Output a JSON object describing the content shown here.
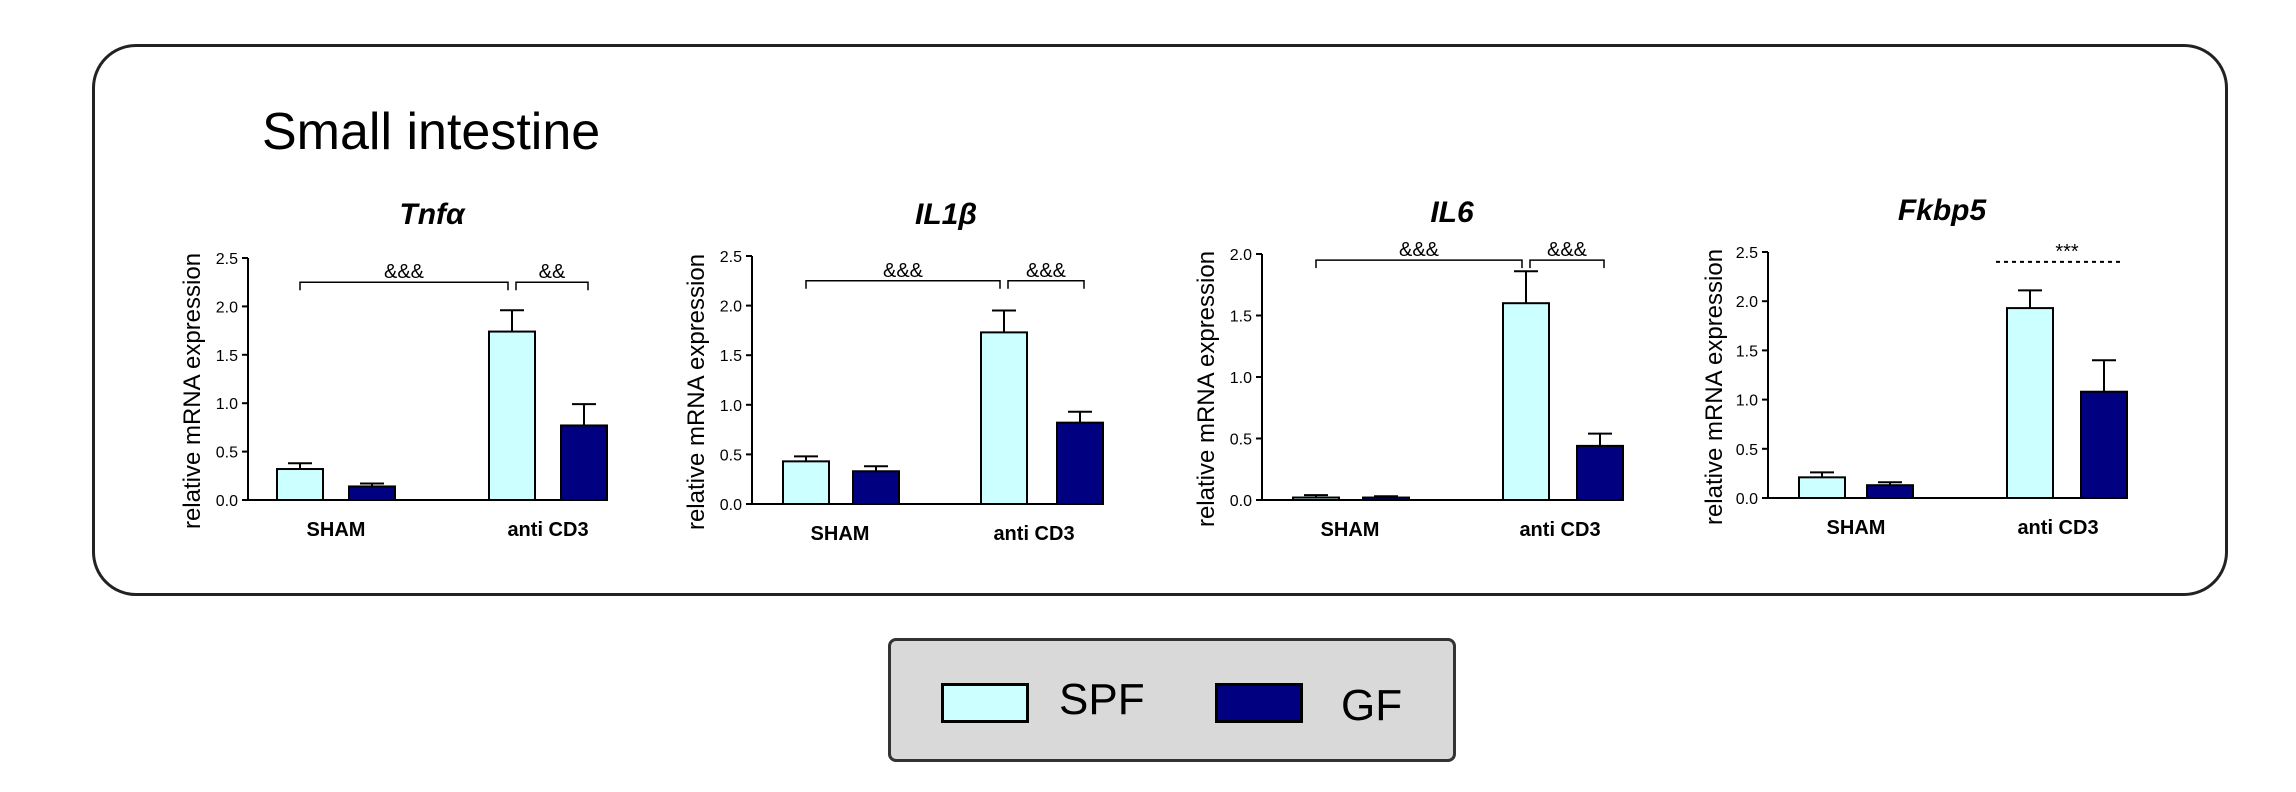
{
  "figure": {
    "title": "Small intestine"
  },
  "legend": {
    "items": [
      {
        "label": "SPF",
        "color": "#ccffff"
      },
      {
        "label": "GF",
        "color": "#000080"
      }
    ]
  },
  "chart_data": [
    {
      "type": "bar",
      "title": "Tnfα",
      "ylabel": "relative mRNA expression",
      "categories": [
        "SHAM",
        "anti CD3"
      ],
      "ylim": [
        0,
        2.5
      ],
      "yticks": [
        "0.0",
        "0.5",
        "1.0",
        "1.5",
        "2.0",
        "2.5"
      ],
      "series": [
        {
          "name": "SPF",
          "values": [
            0.32,
            1.74
          ],
          "errors": [
            0.06,
            0.22
          ]
        },
        {
          "name": "GF",
          "values": [
            0.14,
            0.77
          ],
          "errors": [
            0.03,
            0.22
          ]
        }
      ],
      "annotations": [
        {
          "label": "&&&",
          "style": "bracket",
          "from": [
            "SHAM",
            "SPF"
          ],
          "to": [
            "anti CD3",
            "SPF"
          ],
          "level": 2.25
        },
        {
          "label": "&&",
          "style": "bracket",
          "from": [
            "anti CD3",
            "SPF"
          ],
          "to": [
            "anti CD3",
            "GF"
          ],
          "level": 2.25
        }
      ]
    },
    {
      "type": "bar",
      "title": "IL1β",
      "ylabel": "relative mRNA expression",
      "categories": [
        "SHAM",
        "anti CD3"
      ],
      "ylim": [
        0,
        2.5
      ],
      "yticks": [
        "0.0",
        "0.5",
        "1.0",
        "1.5",
        "2.0",
        "2.5"
      ],
      "series": [
        {
          "name": "SPF",
          "values": [
            0.43,
            1.73
          ],
          "errors": [
            0.05,
            0.22
          ]
        },
        {
          "name": "GF",
          "values": [
            0.33,
            0.82
          ],
          "errors": [
            0.05,
            0.11
          ]
        }
      ],
      "annotations": [
        {
          "label": "&&&",
          "style": "bracket",
          "from": [
            "SHAM",
            "SPF"
          ],
          "to": [
            "anti CD3",
            "SPF"
          ],
          "level": 2.25
        },
        {
          "label": "&&&",
          "style": "bracket",
          "from": [
            "anti CD3",
            "SPF"
          ],
          "to": [
            "anti CD3",
            "GF"
          ],
          "level": 2.25
        }
      ]
    },
    {
      "type": "bar",
      "title": "IL6",
      "ylabel": "relative mRNA expression",
      "categories": [
        "SHAM",
        "anti CD3"
      ],
      "ylim": [
        0,
        2.0
      ],
      "yticks": [
        "0.0",
        "0.5",
        "1.0",
        "1.5",
        "2.0"
      ],
      "series": [
        {
          "name": "SPF",
          "values": [
            0.02,
            1.6
          ],
          "errors": [
            0.02,
            0.26
          ]
        },
        {
          "name": "GF",
          "values": [
            0.02,
            0.44
          ],
          "errors": [
            0.01,
            0.1
          ]
        }
      ],
      "annotations": [
        {
          "label": "&&&",
          "style": "bracket",
          "from": [
            "SHAM",
            "SPF"
          ],
          "to": [
            "anti CD3",
            "SPF"
          ],
          "level": 1.95
        },
        {
          "label": "&&&",
          "style": "bracket",
          "from": [
            "anti CD3",
            "SPF"
          ],
          "to": [
            "anti CD3",
            "GF"
          ],
          "level": 1.95
        }
      ]
    },
    {
      "type": "bar",
      "title": "Fkbp5",
      "ylabel": "relative mRNA expression",
      "categories": [
        "SHAM",
        "anti CD3"
      ],
      "ylim": [
        0,
        2.5
      ],
      "yticks": [
        "0.0",
        "0.5",
        "1.0",
        "1.5",
        "2.0",
        "2.5"
      ],
      "series": [
        {
          "name": "SPF",
          "values": [
            0.21,
            1.93
          ],
          "errors": [
            0.05,
            0.18
          ]
        },
        {
          "name": "GF",
          "values": [
            0.13,
            1.08
          ],
          "errors": [
            0.03,
            0.32
          ]
        }
      ],
      "annotations": [
        {
          "label": "***",
          "style": "dashed",
          "from": [
            "anti CD3",
            "SPF"
          ],
          "to": [
            "anti CD3",
            "GF"
          ],
          "level": 2.4
        }
      ]
    }
  ]
}
